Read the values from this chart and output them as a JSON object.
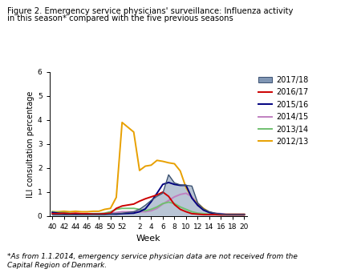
{
  "title_line1": "Figure 2. Emergency service physicians' surveillance: Influenza activity",
  "title_line2": "in this season* compared with the five previous seasons",
  "xlabel": "Week",
  "ylabel": "ILI consultation percentage",
  "footnote": "*As from 1.1.2014, emergency service physician data are not received from the\nCapital Region of Denmark.",
  "xtick_labels": [
    "40",
    "42",
    "44",
    "46",
    "48",
    "50",
    "52",
    "2",
    "4",
    "6",
    "8",
    "10",
    "12",
    "14",
    "16",
    "18",
    "20"
  ],
  "xtick_weeks": [
    40,
    42,
    44,
    46,
    48,
    50,
    52,
    2,
    4,
    6,
    8,
    10,
    12,
    14,
    16,
    18,
    20
  ],
  "ylim": [
    0,
    6
  ],
  "yticks": [
    0,
    1,
    2,
    3,
    4,
    5,
    6
  ],
  "seasons": {
    "2017/18": {
      "color": "#8096b4",
      "fill": true,
      "linecolor": "#3a5070",
      "x": [
        40,
        41,
        42,
        43,
        44,
        45,
        46,
        47,
        48,
        49,
        50,
        51,
        52,
        1,
        2,
        3,
        4,
        5,
        6,
        7,
        8,
        9,
        10,
        11,
        12,
        13,
        14,
        15,
        16,
        17,
        18,
        19,
        20
      ],
      "y": [
        0.05,
        0.05,
        0.05,
        0.05,
        0.05,
        0.05,
        0.05,
        0.05,
        0.05,
        0.05,
        0.08,
        0.1,
        0.12,
        0.18,
        0.28,
        0.45,
        0.65,
        0.82,
        0.95,
        1.72,
        1.38,
        1.3,
        1.28,
        1.25,
        0.55,
        0.3,
        0.18,
        0.12,
        0.08,
        0.06,
        0.06,
        0.06,
        0.06
      ]
    },
    "2016/17": {
      "color": "#cc0000",
      "fill": false,
      "x": [
        40,
        41,
        42,
        43,
        44,
        45,
        46,
        47,
        48,
        49,
        50,
        51,
        52,
        1,
        2,
        3,
        4,
        5,
        6,
        7,
        8,
        9,
        10,
        11,
        12,
        13,
        14,
        15,
        16,
        17,
        18,
        19,
        20
      ],
      "y": [
        0.1,
        0.1,
        0.12,
        0.1,
        0.12,
        0.1,
        0.1,
        0.08,
        0.08,
        0.1,
        0.12,
        0.32,
        0.42,
        0.5,
        0.62,
        0.72,
        0.8,
        0.88,
        1.0,
        0.82,
        0.48,
        0.28,
        0.18,
        0.1,
        0.08,
        0.06,
        0.06,
        0.06,
        0.05,
        0.05,
        0.05,
        0.05,
        0.05
      ]
    },
    "2015/16": {
      "color": "#00007f",
      "fill": false,
      "x": [
        40,
        41,
        42,
        43,
        44,
        45,
        46,
        47,
        48,
        49,
        50,
        51,
        52,
        1,
        2,
        3,
        4,
        5,
        6,
        7,
        8,
        9,
        10,
        11,
        12,
        13,
        14,
        15,
        16,
        17,
        18,
        19,
        20
      ],
      "y": [
        0.15,
        0.12,
        0.1,
        0.08,
        0.08,
        0.08,
        0.08,
        0.08,
        0.08,
        0.08,
        0.08,
        0.08,
        0.1,
        0.12,
        0.18,
        0.3,
        0.6,
        0.95,
        1.32,
        1.4,
        1.32,
        1.28,
        1.28,
        0.75,
        0.45,
        0.25,
        0.15,
        0.1,
        0.08,
        0.06,
        0.06,
        0.06,
        0.06
      ]
    },
    "2014/15": {
      "color": "#c080c0",
      "fill": false,
      "x": [
        40,
        41,
        42,
        43,
        44,
        45,
        46,
        47,
        48,
        49,
        50,
        51,
        52,
        1,
        2,
        3,
        4,
        5,
        6,
        7,
        8,
        9,
        10,
        11,
        12,
        13,
        14,
        15,
        16,
        17,
        18,
        19,
        20
      ],
      "y": [
        0.12,
        0.1,
        0.1,
        0.08,
        0.08,
        0.08,
        0.1,
        0.1,
        0.1,
        0.1,
        0.12,
        0.15,
        0.18,
        0.18,
        0.18,
        0.18,
        0.22,
        0.32,
        0.5,
        0.65,
        0.8,
        0.9,
        0.95,
        0.8,
        0.45,
        0.25,
        0.15,
        0.12,
        0.1,
        0.08,
        0.08,
        0.08,
        0.08
      ]
    },
    "2013/14": {
      "color": "#70c070",
      "fill": false,
      "x": [
        40,
        41,
        42,
        43,
        44,
        45,
        46,
        47,
        48,
        49,
        50,
        51,
        52,
        1,
        2,
        3,
        4,
        5,
        6,
        7,
        8,
        9,
        10,
        11,
        12,
        13,
        14,
        15,
        16,
        17,
        18,
        19,
        20
      ],
      "y": [
        0.18,
        0.15,
        0.15,
        0.12,
        0.1,
        0.1,
        0.1,
        0.1,
        0.1,
        0.12,
        0.18,
        0.28,
        0.32,
        0.32,
        0.28,
        0.22,
        0.28,
        0.38,
        0.52,
        0.58,
        0.52,
        0.38,
        0.28,
        0.18,
        0.12,
        0.1,
        0.08,
        0.08,
        0.06,
        0.06,
        0.06,
        0.06,
        0.06
      ]
    },
    "2012/13": {
      "color": "#e8a000",
      "fill": false,
      "x": [
        40,
        41,
        42,
        43,
        44,
        45,
        46,
        47,
        48,
        49,
        50,
        51,
        52,
        1,
        2,
        3,
        4,
        5,
        6,
        7,
        8,
        9,
        10,
        11,
        12,
        13,
        14,
        15,
        16,
        17,
        18,
        19,
        20
      ],
      "y": [
        0.18,
        0.18,
        0.2,
        0.18,
        0.2,
        0.18,
        0.18,
        0.2,
        0.2,
        0.28,
        0.32,
        0.78,
        3.9,
        3.5,
        1.9,
        2.08,
        2.12,
        2.32,
        2.28,
        2.22,
        2.18,
        1.88,
        1.18,
        0.78,
        0.52,
        0.32,
        0.16,
        0.1,
        0.08,
        0.08,
        0.08,
        0.08,
        0.08
      ]
    }
  }
}
